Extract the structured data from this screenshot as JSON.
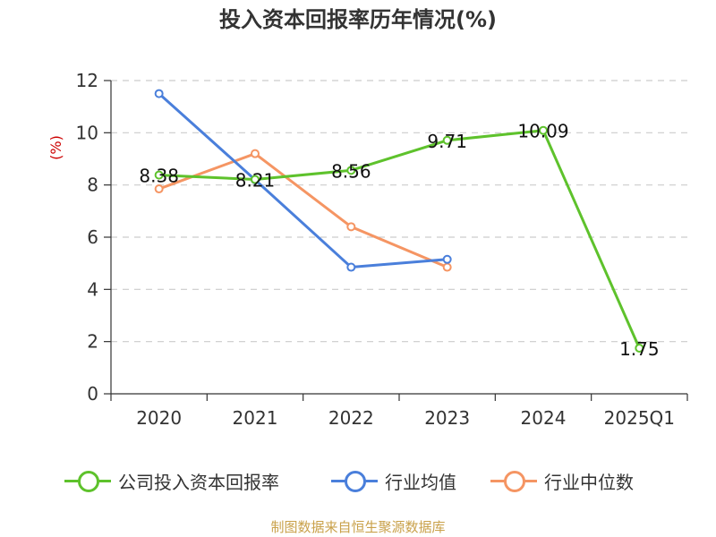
{
  "chart_data": {
    "type": "line",
    "title": "投入资本回报率历年情况(%)",
    "ylabel": "(%)",
    "xlabel": "",
    "categories": [
      "2020",
      "2021",
      "2022",
      "2023",
      "2024",
      "2025Q1"
    ],
    "ylim": [
      0,
      12
    ],
    "yticks": [
      0,
      2,
      4,
      6,
      8,
      10,
      12
    ],
    "grid": true,
    "legend_position": "bottom",
    "series": [
      {
        "name": "公司投入资本回报率",
        "color": "#5ec22c",
        "values": [
          8.38,
          8.21,
          8.56,
          9.71,
          10.09,
          1.75
        ],
        "labels": [
          "8.38",
          "8.21",
          "8.56",
          "9.71",
          "10.09",
          "1.75"
        ]
      },
      {
        "name": "行业均值",
        "color": "#4a7fdb",
        "values": [
          11.5,
          8.2,
          4.85,
          5.15,
          null,
          null
        ]
      },
      {
        "name": "行业中位数",
        "color": "#f59563",
        "values": [
          7.85,
          9.2,
          6.4,
          4.85,
          null,
          null
        ]
      }
    ],
    "source": "制图数据来自恒生聚源数据库"
  }
}
